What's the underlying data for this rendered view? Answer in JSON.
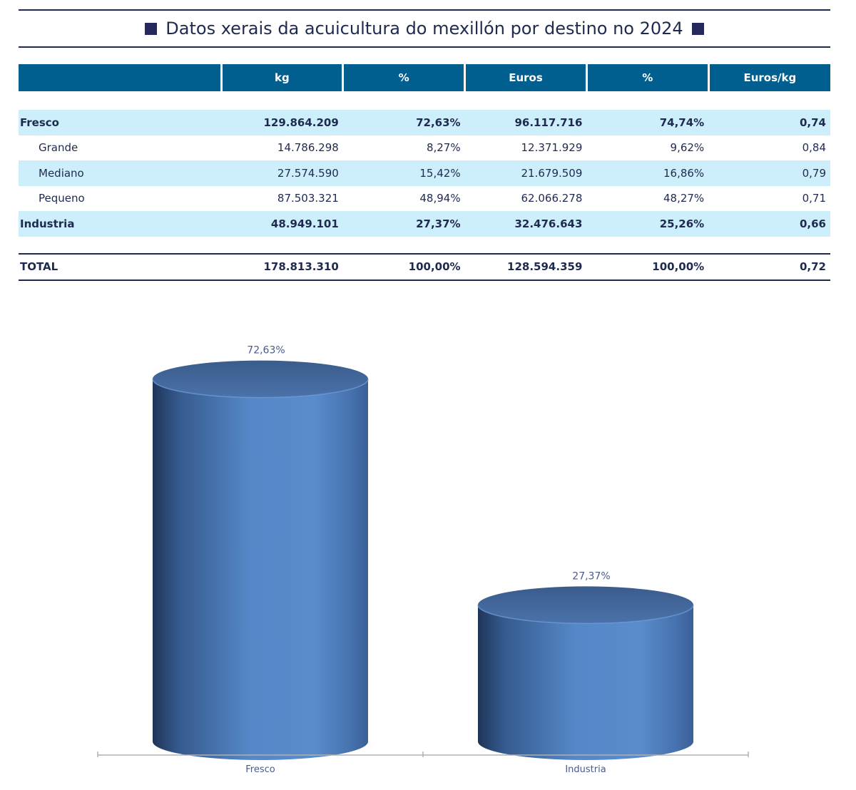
{
  "title": "Datos xerais da acuicultura do mexillón por destino no 2024",
  "table": {
    "headers": [
      "",
      "kg",
      "%",
      "Euros",
      "%",
      "Euros/kg"
    ],
    "rows": [
      {
        "label": "Fresco",
        "kg": "129.864.209",
        "pct_kg": "72,63%",
        "euros": "96.117.716",
        "pct_euros": "74,74%",
        "euros_kg": "0,74"
      },
      {
        "label": "Grande",
        "kg": "14.786.298",
        "pct_kg": "8,27%",
        "euros": "12.371.929",
        "pct_euros": "9,62%",
        "euros_kg": "0,84"
      },
      {
        "label": "Mediano",
        "kg": "27.574.590",
        "pct_kg": "15,42%",
        "euros": "21.679.509",
        "pct_euros": "16,86%",
        "euros_kg": "0,79"
      },
      {
        "label": "Pequeno",
        "kg": "87.503.321",
        "pct_kg": "48,94%",
        "euros": "62.066.278",
        "pct_euros": "48,27%",
        "euros_kg": "0,71"
      },
      {
        "label": "Industria",
        "kg": "48.949.101",
        "pct_kg": "27,37%",
        "euros": "32.476.643",
        "pct_euros": "25,26%",
        "euros_kg": "0,66"
      }
    ],
    "total": {
      "label": "TOTAL",
      "kg": "178.813.310",
      "pct_kg": "100,00%",
      "euros": "128.594.359",
      "pct_euros": "100,00%",
      "euros_kg": "0,72"
    }
  },
  "chart_data": {
    "type": "bar",
    "style": "3d-cylinder",
    "categories": [
      "Fresco",
      "Industria"
    ],
    "values": [
      72.63,
      27.37
    ],
    "data_labels": [
      "72,63%",
      "27,37%"
    ],
    "ylim": [
      0,
      80
    ],
    "grid": false,
    "legend": "none",
    "colors": {
      "bar": "#4f7fc0",
      "bar_dark": "#1f3558",
      "label": "#4a5a8a",
      "axis": "#b0b0b0"
    }
  }
}
